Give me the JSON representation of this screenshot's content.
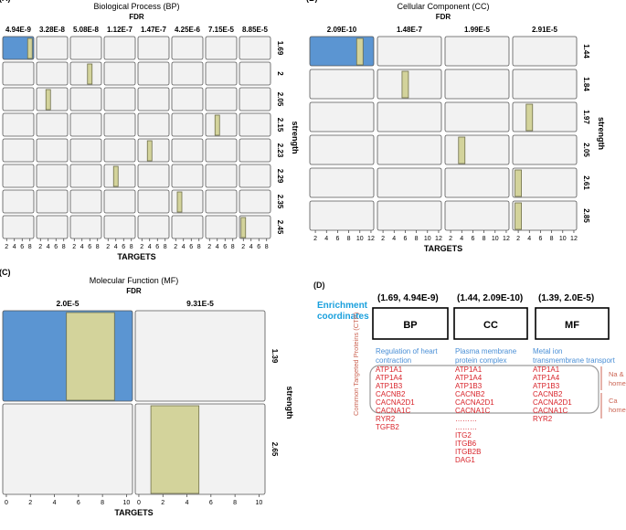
{
  "chart_data": [
    {
      "panel": "(A)",
      "type": "heatmap",
      "title": "Biological Process (BP)",
      "subtitle": "FDR",
      "xlabel": "TARGETS",
      "ylabel": "strength",
      "xlim": [
        1,
        9
      ],
      "xticks": [
        "2",
        "4",
        "6",
        "8"
      ],
      "columns": [
        "4.94E-9",
        "3.28E-8",
        "5.08E-8",
        "1.12E-7",
        "1.47E-7",
        "4.25E-6",
        "7.15E-5",
        "8.85E-5"
      ],
      "rows": [
        "1.69",
        "2",
        "2.05",
        "2.15",
        "2.23",
        "2.29",
        "2.35",
        "2.45"
      ],
      "cells": [
        {
          "row": 0,
          "col": 0,
          "targets": 8,
          "highlight": true
        },
        {
          "row": 1,
          "col": 2,
          "targets": 6
        },
        {
          "row": 2,
          "col": 1,
          "targets": 4
        },
        {
          "row": 3,
          "col": 6,
          "targets": 4
        },
        {
          "row": 4,
          "col": 4,
          "targets": 4
        },
        {
          "row": 5,
          "col": 3,
          "targets": 4
        },
        {
          "row": 6,
          "col": 5,
          "targets": 3
        },
        {
          "row": 7,
          "col": 7,
          "targets": 2
        }
      ]
    },
    {
      "panel": "(B)",
      "type": "heatmap",
      "title": "Cellular Component  (CC)",
      "subtitle": "FDR",
      "xlabel": "TARGETS",
      "ylabel": "strength",
      "xlim": [
        1,
        12.5
      ],
      "xticks": [
        "2",
        "4",
        "6",
        "8",
        "10",
        "12"
      ],
      "columns": [
        "2.09E-10",
        "1.48E-7",
        "1.99E-5",
        "2.91E-5"
      ],
      "rows": [
        "1.44",
        "1.84",
        "1.97",
        "2.05",
        "2.61",
        "2.85"
      ],
      "cells": [
        {
          "row": 0,
          "col": 0,
          "targets": 10,
          "highlight": true
        },
        {
          "row": 1,
          "col": 1,
          "targets": 6
        },
        {
          "row": 2,
          "col": 3,
          "targets": 4
        },
        {
          "row": 3,
          "col": 2,
          "targets": 4
        },
        {
          "row": 4,
          "col": 3,
          "targets": 2
        },
        {
          "row": 5,
          "col": 3,
          "targets": 2
        }
      ]
    },
    {
      "panel": "(C)",
      "type": "heatmap",
      "title": "Molecular Function (MF)",
      "subtitle": "FDR",
      "xlabel": "TARGETS",
      "ylabel": "strength",
      "xlim": [
        -0.3,
        10.5
      ],
      "xticks": [
        "0",
        "2",
        "4",
        "6",
        "8",
        "10"
      ],
      "columns": [
        "2.0E-5",
        "9.31E-5"
      ],
      "rows": [
        "1.39",
        "2.65"
      ],
      "cells": [
        {
          "row": 0,
          "col": 0,
          "from": 5,
          "to": 9,
          "highlight": true
        },
        {
          "row": 1,
          "col": 1,
          "from": 1,
          "to": 5
        }
      ]
    }
  ],
  "panelD": {
    "label": "(D)",
    "enrichment_line1": "Enrichment",
    "enrichment_line2": "coordinates",
    "side_label": "Common Targeted Proteins (CTP)",
    "groups": [
      {
        "coord": "(1.69, 4.94E-9)",
        "box": "BP",
        "term_lines": [
          "Regulation of heart",
          "contraction"
        ],
        "proteins": [
          "ATP1A1",
          "ATP1A4",
          "ATP1B3",
          "CACNB2",
          "CACNA2D1",
          "CACNA1C",
          "RYR2",
          "TGFB2"
        ]
      },
      {
        "coord": "(1.44, 2.09E-10)",
        "box": "CC",
        "term_lines": [
          "Plasma membrane",
          "protein complex"
        ],
        "proteins": [
          "ATP1A1",
          "ATP1A4",
          "ATP1B3",
          "CACNB2",
          "CACNA2D1",
          "CACNA1C",
          "………",
          "………",
          "ITG2",
          "ITGB6",
          "ITGB2B",
          "DAG1"
        ]
      },
      {
        "coord": "(1.39, 2.0E-5)",
        "box": "MF",
        "term_lines": [
          "Metal ion",
          "transmembrane transport"
        ],
        "proteins": [
          "ATP1A1",
          "ATP1A4",
          "ATP1B3",
          "CACNB2",
          "CACNA2D1",
          "CACNA1C",
          "RYR2"
        ]
      }
    ],
    "bracket1": [
      "Na & K",
      "homeostasis"
    ],
    "bracket2": [
      "Ca",
      "homeostasis"
    ]
  },
  "colors": {
    "cell_bg": "#f2f2f2",
    "highlight": "#5b95d2",
    "bar": "#d3d39b",
    "bar_stroke": "#6f6f4a",
    "accent_blue": "#4a8fd6",
    "accent_red": "#d8232a",
    "cyan": "#1aa0dd"
  }
}
